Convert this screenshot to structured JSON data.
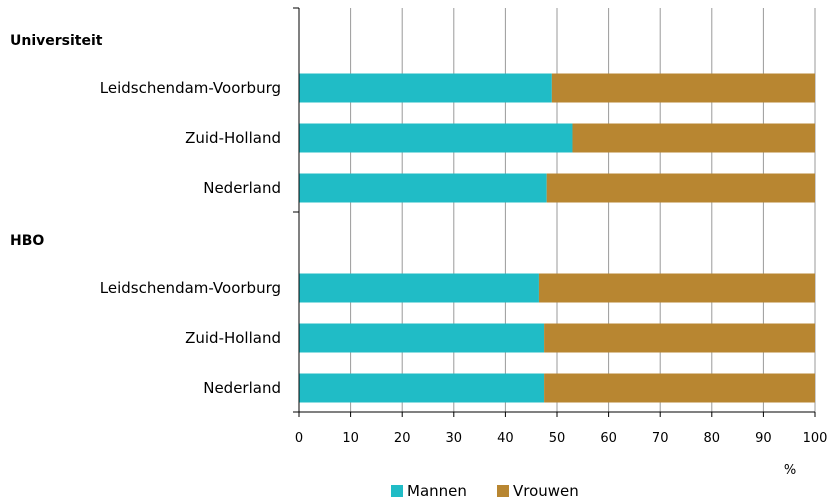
{
  "chart_data": {
    "type": "bar",
    "orientation": "horizontal",
    "stacked": true,
    "groups": [
      {
        "label": "Universiteit",
        "categories": [
          "Leidschendam-Voorburg",
          "Zuid-Holland",
          "Nederland"
        ],
        "series": [
          {
            "name": "Mannen",
            "values": [
              49,
              53,
              48
            ]
          },
          {
            "name": "Vrouwen",
            "values": [
              51,
              47,
              52
            ]
          }
        ]
      },
      {
        "label": "HBO",
        "categories": [
          "Leidschendam-Voorburg",
          "Zuid-Holland",
          "Nederland"
        ],
        "series": [
          {
            "name": "Mannen",
            "values": [
              46.5,
              47.5,
              47.5
            ]
          },
          {
            "name": "Vrouwen",
            "values": [
              53.5,
              52.5,
              52.5
            ]
          }
        ]
      }
    ],
    "xlim": [
      0,
      100
    ],
    "xticks": [
      0,
      10,
      20,
      30,
      40,
      50,
      60,
      70,
      80,
      90,
      100
    ],
    "xunit": "%",
    "grid": true,
    "legend": {
      "position": "bottom",
      "entries": [
        {
          "name": "Mannen",
          "color": "#20BCC6"
        },
        {
          "name": "Vrouwen",
          "color": "#B88631"
        }
      ]
    }
  }
}
